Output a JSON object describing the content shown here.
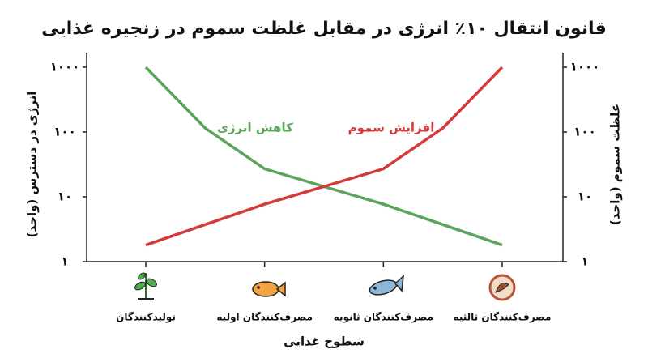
{
  "chart_data": {
    "type": "line",
    "title": "قانون انتقال ۱۰٪ انرژی در مقابل غلظت سموم در زنجیره غذایی",
    "xlabel": "سطوح غذایی",
    "ylabel": "انرژی در دسترس (واحد)",
    "y2label": "غلظت سموم (واحد)",
    "categories": [
      "تولیدکنندگان",
      "مصرف‌کنندگان اولیه",
      "مصرف‌کنندگان ثانویه",
      "مصرف‌کنندگان ثالثیه"
    ],
    "xlim": [
      0,
      3
    ],
    "log_scale": true,
    "ylim": [
      1,
      1000
    ],
    "yticks": [
      {
        "value": 1,
        "label": "۱"
      },
      {
        "value": 10,
        "label": "۱۰"
      },
      {
        "value": 100,
        "label": "۱۰۰"
      },
      {
        "value": 1000,
        "label": "۱۰۰۰"
      }
    ],
    "y2lim": [
      1,
      1000
    ],
    "y2ticks": [
      {
        "value": 1,
        "label": "۱"
      },
      {
        "value": 10,
        "label": "۱۰"
      },
      {
        "value": 100,
        "label": "۱۰۰"
      },
      {
        "value": 1000,
        "label": "۱۰۰۰"
      }
    ],
    "grid": false,
    "series": [
      {
        "name": "کاهش انرژی",
        "color": "#5ba55b",
        "x": [
          0,
          0.5,
          1,
          2,
          3
        ],
        "values": [
          1000,
          115,
          27,
          7.7,
          1.8
        ]
      },
      {
        "name": "افزایش سموم",
        "color": "#d53a3a",
        "axis": "y2",
        "x": [
          0,
          1,
          2,
          2.5,
          3
        ],
        "values": [
          1.8,
          7.7,
          27,
          115,
          1000
        ]
      }
    ]
  }
}
